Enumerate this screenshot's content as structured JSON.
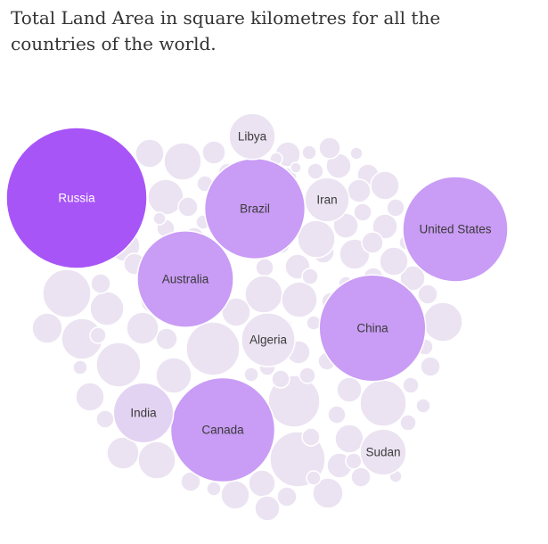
{
  "title": "Total Land Area in square kilometres for all the countries of the world.",
  "chart_data": {
    "type": "bubble",
    "title": "Total Land Area in square kilometres for all the countries of the world.",
    "measure": "Total Land Area (sq km)",
    "colors": {
      "largest": "#a855f7",
      "large": "#c99cf5",
      "medium": "#e3d3f3",
      "small": "#ebe3f2",
      "label_light": "#ffffff",
      "label_dark": "#3a3a3a"
    },
    "labeled": [
      {
        "name": "Russia",
        "value": 16376870
      },
      {
        "name": "China",
        "value": 9388211
      },
      {
        "name": "United States",
        "value": 9147420
      },
      {
        "name": "Canada",
        "value": 8965590
      },
      {
        "name": "Brazil",
        "value": 8358140
      },
      {
        "name": "Australia",
        "value": 7682300
      },
      {
        "name": "India",
        "value": 2973190
      },
      {
        "name": "Algeria",
        "value": 2381740
      },
      {
        "name": "Sudan",
        "value": 1765048
      },
      {
        "name": "Libya",
        "value": 1759540
      },
      {
        "name": "Iran",
        "value": 1628550
      }
    ]
  }
}
